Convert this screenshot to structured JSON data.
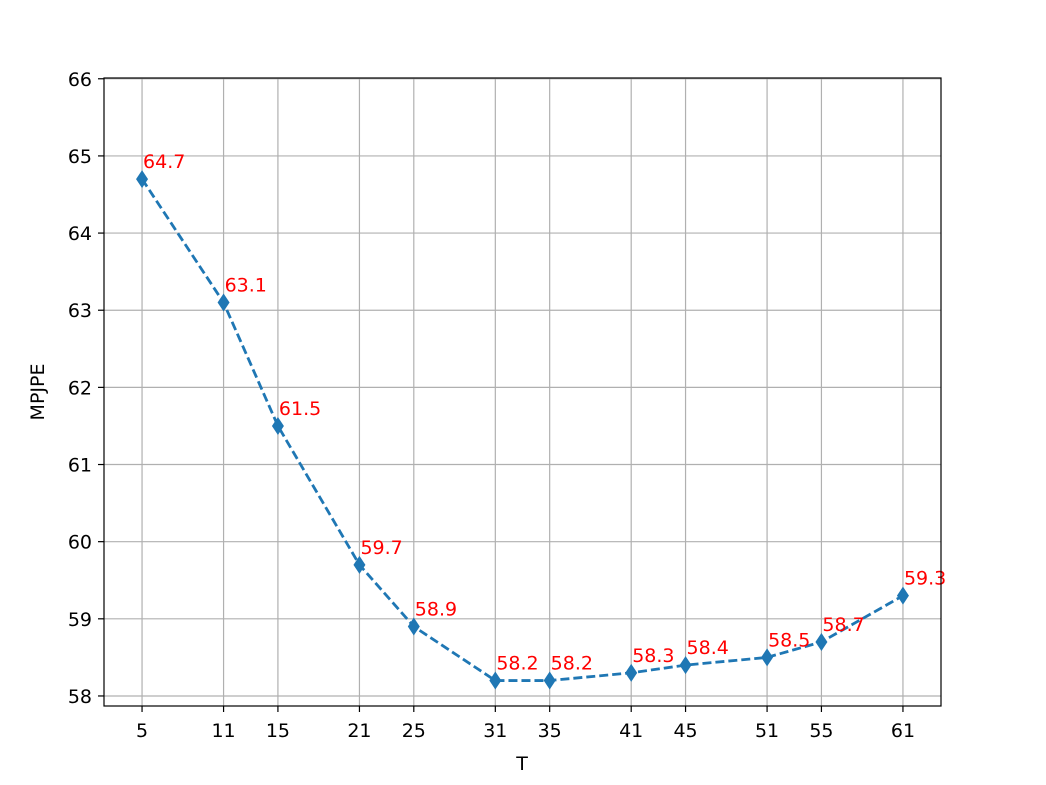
{
  "chart_data": {
    "type": "line",
    "x_label": "T",
    "y_label": "MPJPE",
    "x": [
      5,
      11,
      15,
      21,
      25,
      31,
      35,
      41,
      45,
      51,
      55,
      61
    ],
    "values": [
      64.7,
      63.1,
      61.5,
      59.7,
      58.9,
      58.2,
      58.2,
      58.3,
      58.4,
      58.5,
      58.7,
      59.3
    ],
    "color": "#1f77b4",
    "label_color": "#ff0000",
    "line_style": "dashed",
    "marker": "diamond",
    "xlim": [
      2.2,
      63.8
    ],
    "ylim": [
      57.87,
      66.01
    ],
    "xticks": [
      5,
      11,
      15,
      21,
      25,
      31,
      35,
      41,
      45,
      51,
      55,
      61
    ],
    "yticks": [
      58,
      59,
      60,
      61,
      62,
      63,
      64,
      65,
      66
    ],
    "grid": true
  }
}
